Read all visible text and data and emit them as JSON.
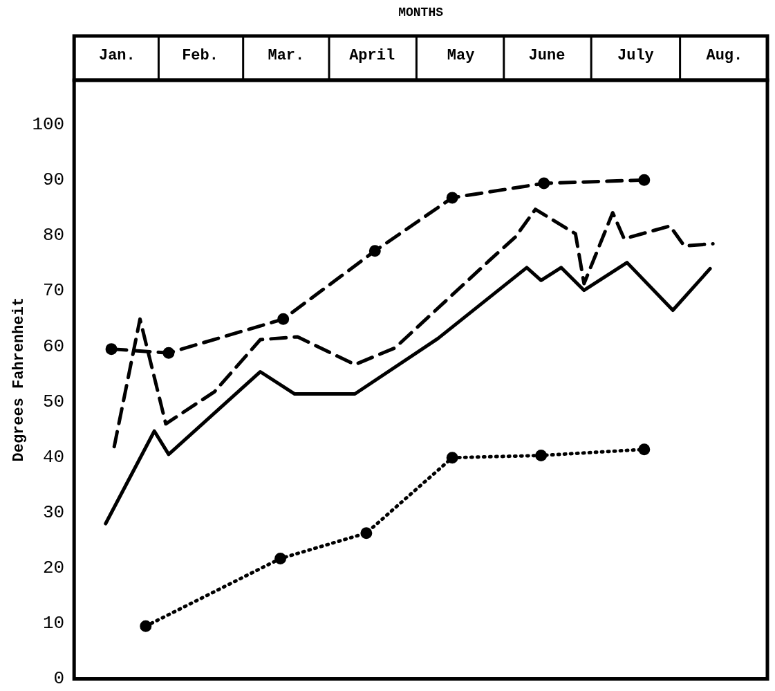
{
  "chart_data": {
    "type": "line",
    "xlabel": "MONTHS",
    "ylabel": "Degrees Fahrenheit",
    "xlim": [
      "--01-01",
      "--08-31"
    ],
    "xticks": [
      {
        "value": "--01-16",
        "label": "Jan."
      },
      {
        "value": "--02-14",
        "label": "Feb."
      },
      {
        "value": "--03-16",
        "label": "Mar."
      },
      {
        "value": "--04-15",
        "label": "April"
      },
      {
        "value": "--05-16",
        "label": "May"
      },
      {
        "value": "--06-15",
        "label": "June"
      },
      {
        "value": "--07-16",
        "label": "July"
      },
      {
        "value": "--08-16",
        "label": "Aug."
      }
    ],
    "ylim": [
      0,
      108
    ],
    "yticks": [
      0,
      10,
      20,
      30,
      40,
      50,
      60,
      70,
      80,
      90,
      100
    ],
    "grid": false,
    "legend": false,
    "series": [
      {
        "color": "#000000",
        "line_style": "solid",
        "marker": "none",
        "x": [
          "--01-12",
          "--01-29",
          "--02-03",
          "--03-07",
          "--03-19",
          "--04-09",
          "--05-08",
          "--06-08",
          "--06-13",
          "--06-20",
          "--06-28",
          "--07-13",
          "--07-29",
          "--08-11"
        ],
        "values": [
          28,
          44.7,
          40.5,
          55.4,
          51.4,
          51.4,
          61.4,
          74.2,
          71.9,
          74.2,
          70.1,
          75.1,
          66.5,
          74
        ]
      },
      {
        "color": "#000000",
        "line_style": "dashed",
        "marker": "none",
        "x": [
          "--01-15",
          "--01-24",
          "--02-02",
          "--02-19",
          "--03-07",
          "--03-20",
          "--04-09",
          "--04-23",
          "--05-26",
          "--06-04",
          "--06-11",
          "--06-25",
          "--06-28",
          "--07-08",
          "--07-12",
          "--07-28",
          "--08-02",
          "--08-12"
        ],
        "values": [
          41.9,
          64.9,
          46,
          51.8,
          61.2,
          61.7,
          56.7,
          59.7,
          75.5,
          79.7,
          84.7,
          80.3,
          71.3,
          84.1,
          79.4,
          81.7,
          78.1,
          78.5
        ]
      },
      {
        "color": "#000000",
        "line_style": "dashed",
        "marker": "circle",
        "x": [
          "--01-14",
          "--02-03",
          "--03-15",
          "--04-16",
          "--05-13",
          "--06-14",
          "--07-19"
        ],
        "values": [
          59.5,
          58.8,
          64.9,
          77.2,
          86.8,
          89.4,
          90
        ]
      },
      {
        "color": "#000000",
        "line_style": "dotted",
        "marker": "circle",
        "x": [
          "--01-26",
          "--03-14",
          "--04-13",
          "--05-13",
          "--06-13",
          "--07-19"
        ],
        "values": [
          9.5,
          21.7,
          26.3,
          39.9,
          40.3,
          41.4
        ]
      }
    ]
  }
}
